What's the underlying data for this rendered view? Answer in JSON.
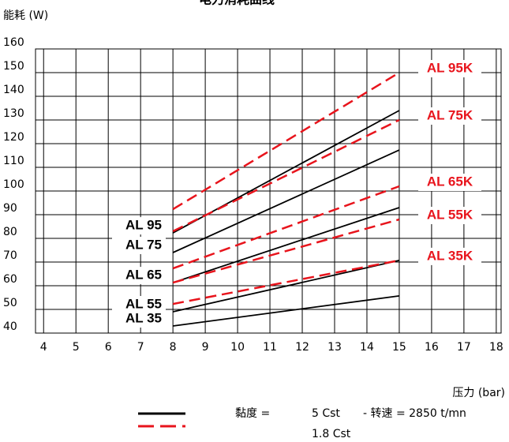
{
  "chart_data": {
    "type": "line",
    "title": "电力消耗曲线",
    "y_label": "能耗 (W)",
    "x_label": "压力 (bar)",
    "xlim": [
      3.75,
      18.15
    ],
    "ylim": [
      40,
      160
    ],
    "xticks": [
      4,
      5,
      6,
      7,
      8,
      9,
      10,
      11,
      12,
      13,
      14,
      15,
      16,
      17,
      18
    ],
    "yticks": [
      40,
      50,
      60,
      70,
      80,
      90,
      100,
      110,
      120,
      130,
      140,
      150,
      160
    ],
    "grid": true,
    "series": [
      {
        "name": "AL 95",
        "color": "#000000",
        "dashed": false,
        "x": [
          8,
          15
        ],
        "values": [
          82.3,
          134
        ]
      },
      {
        "name": "AL 75",
        "color": "#000000",
        "dashed": false,
        "x": [
          8,
          15
        ],
        "values": [
          74,
          117.3
        ]
      },
      {
        "name": "AL 65",
        "color": "#000000",
        "dashed": false,
        "x": [
          8,
          15
        ],
        "values": [
          61.3,
          93
        ]
      },
      {
        "name": "AL 55",
        "color": "#000000",
        "dashed": false,
        "x": [
          8,
          15
        ],
        "values": [
          49,
          70.7
        ]
      },
      {
        "name": "AL 35",
        "color": "#000000",
        "dashed": false,
        "x": [
          8,
          15
        ],
        "values": [
          43,
          55.7
        ]
      },
      {
        "name": "AL 95K",
        "color": "#e8141c",
        "dashed": true,
        "x": [
          8,
          15
        ],
        "values": [
          92.3,
          150
        ]
      },
      {
        "name": "AL 75K",
        "color": "#e8141c",
        "dashed": true,
        "x": [
          8,
          15
        ],
        "values": [
          83,
          130
        ]
      },
      {
        "name": "AL 65K",
        "color": "#e8141c",
        "dashed": true,
        "x": [
          8,
          15
        ],
        "values": [
          67.3,
          102
        ]
      },
      {
        "name": "AL 55K",
        "color": "#e8141c",
        "dashed": true,
        "x": [
          8,
          15
        ],
        "values": [
          61.3,
          88
        ]
      },
      {
        "name": "AL 35K",
        "color": "#e8141c",
        "dashed": true,
        "x": [
          8,
          15
        ],
        "values": [
          52.3,
          70.7
        ]
      }
    ],
    "legend": {
      "prefix": "黏度 =",
      "solid": "5 Cst",
      "speed": "- 转速 = 2850 t/mn",
      "dashed": "1.8 Cst"
    }
  }
}
